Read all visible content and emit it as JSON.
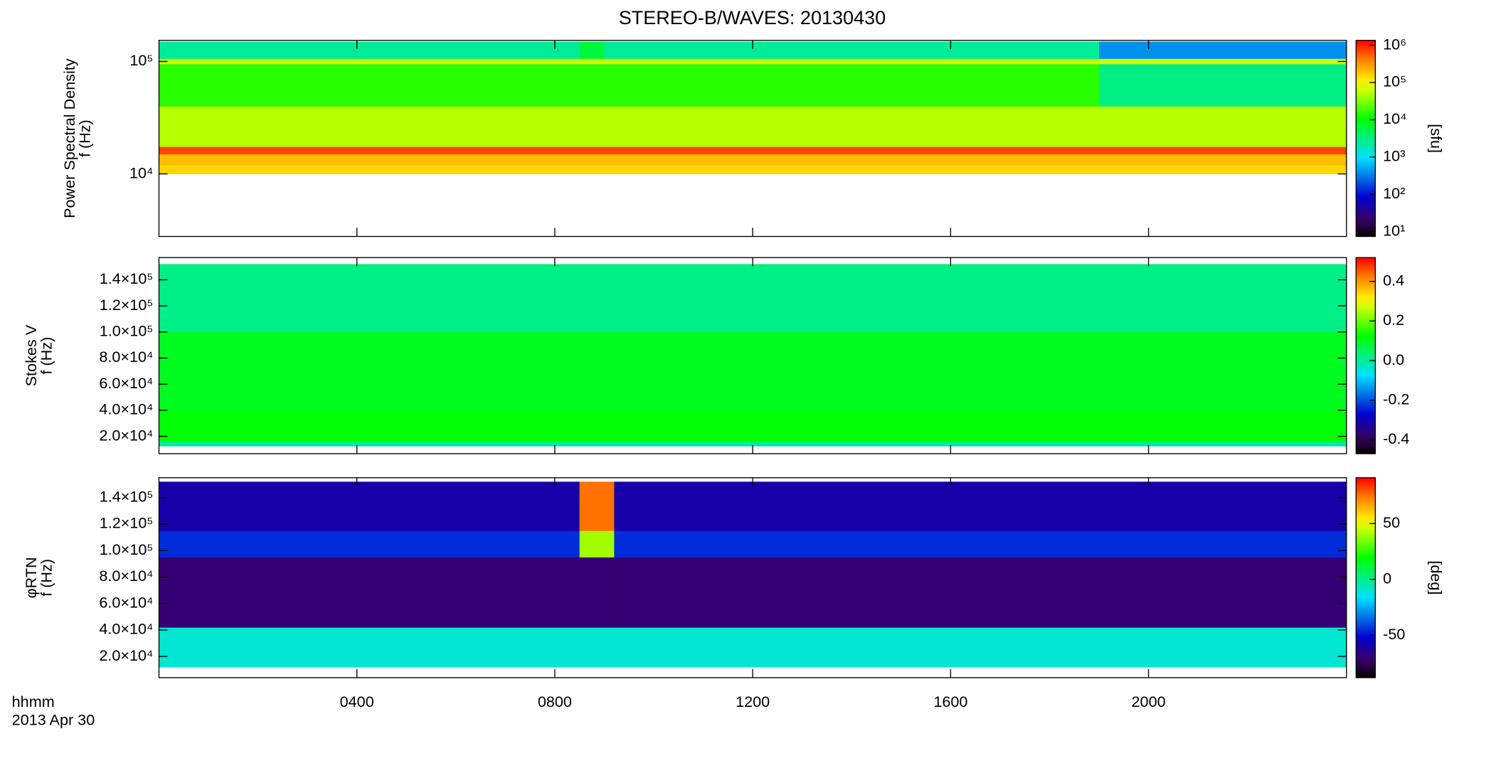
{
  "chart_data": [
    {
      "type": "heatmap",
      "title": "STEREO-B/WAVES: 20130430",
      "ylabel": [
        "Power Spectral Density",
        "f (Hz)"
      ],
      "log": true,
      "xlim": [
        0,
        24
      ],
      "ylim": [
        2780,
        154000
      ],
      "yticks": [
        {
          "value": 10000,
          "label": "10⁴"
        },
        {
          "value": 100000,
          "label": "10⁵"
        }
      ],
      "x_edges": [
        0,
        8.5,
        9,
        19,
        24
      ],
      "y_edges": [
        10000,
        12000,
        15000,
        17500,
        40000,
        95000,
        106000,
        150000
      ],
      "z": [
        [
          150000,
          150000,
          150000,
          150000
        ],
        [
          200000,
          200000,
          200000,
          200000
        ],
        [
          700000,
          700000,
          700000,
          700000
        ],
        [
          50000,
          50000,
          50000,
          50000
        ],
        [
          15000,
          15000,
          15000,
          3000
        ],
        [
          60000,
          60000,
          60000,
          60000
        ],
        [
          2500,
          6000,
          2500,
          400
        ]
      ],
      "colormap": "rainbow",
      "clim": [
        7.4,
        1350000
      ],
      "clog": true,
      "clabel": "[sfu]",
      "cticks": [
        {
          "value": 10,
          "label": "10¹"
        },
        {
          "value": 100,
          "label": "10²"
        },
        {
          "value": 1000,
          "label": "10³"
        },
        {
          "value": 10000,
          "label": "10⁴"
        },
        {
          "value": 100000,
          "label": "10⁵"
        },
        {
          "value": 1000000,
          "label": "10⁶"
        }
      ]
    },
    {
      "type": "heatmap",
      "ylabel": [
        "Stokes V",
        "f (Hz)"
      ],
      "log": false,
      "xlim": [
        0,
        24
      ],
      "ylim": [
        6700,
        157000
      ],
      "yticks": [
        {
          "value": 20000,
          "label": "2.0×10⁴"
        },
        {
          "value": 40000,
          "label": "4.0×10⁴"
        },
        {
          "value": 60000,
          "label": "6.0×10⁴"
        },
        {
          "value": 80000,
          "label": "8.0×10⁴"
        },
        {
          "value": 100000,
          "label": "1.0×10⁵"
        },
        {
          "value": 120000,
          "label": "1.2×10⁵"
        },
        {
          "value": 140000,
          "label": "1.4×10⁵"
        }
      ],
      "x_edges": [
        0,
        24
      ],
      "y_edges": [
        12500,
        16000,
        40000,
        100000,
        152000
      ],
      "z": [
        [
          0.0
        ],
        [
          0.12
        ],
        [
          0.1
        ],
        [
          0.02
        ]
      ],
      "colormap": "rainbow",
      "clim": [
        -0.47,
        0.52
      ],
      "clog": false,
      "cticks": [
        -0.4,
        -0.2,
        {
          "value": 0,
          "label": "0.0"
        },
        0.2,
        0.4
      ]
    },
    {
      "type": "heatmap",
      "ylabel": [
        "φRTN",
        "f (Hz)"
      ],
      "log": false,
      "xlim": [
        0,
        24
      ],
      "ylim": [
        4000,
        155000
      ],
      "yticks": [
        {
          "value": 20000,
          "label": "2.0×10⁴"
        },
        {
          "value": 40000,
          "label": "4.0×10⁴"
        },
        {
          "value": 60000,
          "label": "6.0×10⁴"
        },
        {
          "value": 80000,
          "label": "8.0×10⁴"
        },
        {
          "value": 100000,
          "label": "1.0×10⁵"
        },
        {
          "value": 120000,
          "label": "1.2×10⁵"
        },
        {
          "value": 140000,
          "label": "1.4×10⁵"
        }
      ],
      "xticks": [
        {
          "value": 4,
          "label": "0400"
        },
        {
          "value": 8,
          "label": "0800"
        },
        {
          "value": 12,
          "label": "1200"
        },
        {
          "value": 16,
          "label": "1600"
        },
        {
          "value": 20,
          "label": "2000"
        }
      ],
      "xlabel": "hhmm",
      "date": "2013 Apr 30",
      "x_edges": [
        0,
        8.5,
        9.2,
        24
      ],
      "y_edges": [
        12000,
        42000,
        95000,
        115000,
        152000
      ],
      "z": [
        [
          -10,
          -10,
          -10
        ],
        [
          -70,
          -70,
          -70
        ],
        [
          -45,
          40,
          -45
        ],
        [
          -60,
          75,
          -60
        ]
      ],
      "colormap": "rainbow",
      "clim": [
        -88,
        91
      ],
      "clog": false,
      "clabel": "[deg]",
      "cticks": [
        -50,
        0,
        50
      ]
    }
  ]
}
